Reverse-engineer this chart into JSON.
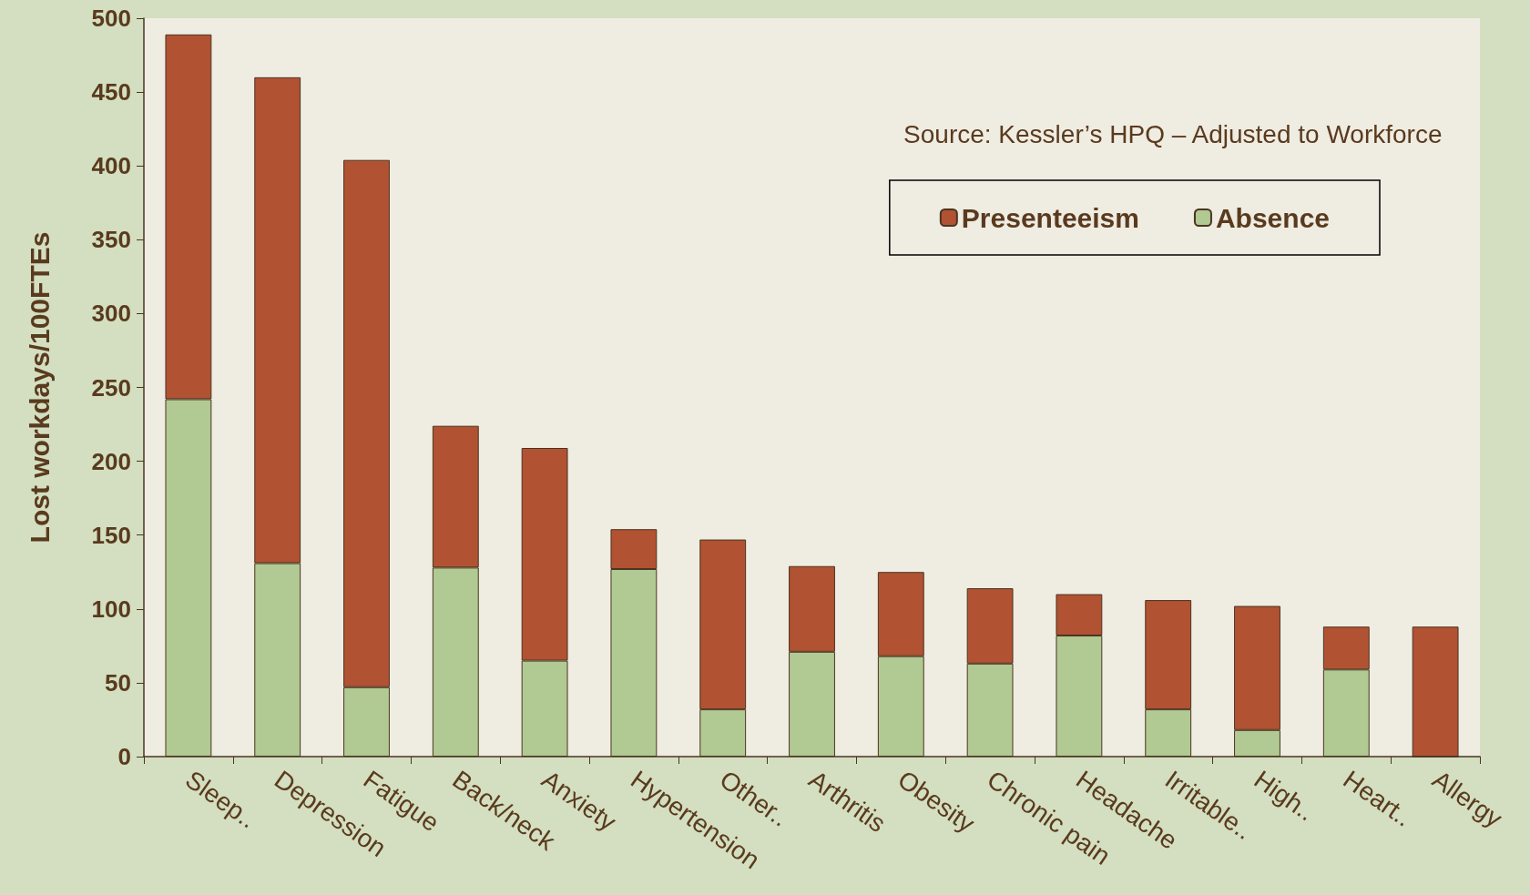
{
  "chart_data": {
    "type": "bar",
    "stacked": true,
    "ylabel": "Lost workdays/100FTEs",
    "annotations": [
      "Source: Kessler’s HPQ – Adjusted to Workforce"
    ],
    "categories": [
      "Sleep..",
      "Depression",
      "Fatigue",
      "Back/neck",
      "Anxiety",
      "Hypertension",
      "Other..",
      "Arthritis",
      "Obesity",
      "Chronic pain",
      "Headache",
      "Irritable..",
      "High..",
      "Heart..",
      "Allergy"
    ],
    "series": [
      {
        "name": "Absence",
        "color": "#b1c992",
        "values": [
          242,
          131,
          47,
          128,
          65,
          127,
          32,
          71,
          68,
          63,
          82,
          32,
          18,
          59,
          0
        ]
      },
      {
        "name": "Presenteeism",
        "color": "#b15232",
        "values": [
          247,
          329,
          357,
          96,
          144,
          27,
          115,
          58,
          57,
          51,
          28,
          74,
          84,
          29,
          88
        ]
      }
    ],
    "ylim": [
      0,
      500
    ],
    "yticks": [
      0,
      50,
      100,
      150,
      200,
      250,
      300,
      350,
      400,
      450,
      500
    ],
    "grid": false,
    "legend": "top right"
  }
}
